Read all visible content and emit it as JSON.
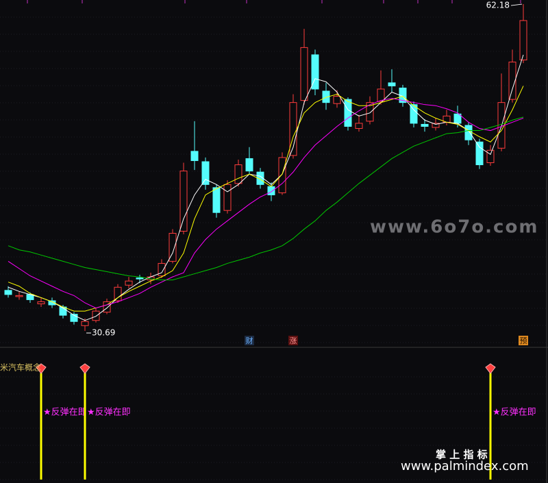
{
  "chart_data": {
    "type": "candlestick",
    "ylim": [
      29.24,
      62.58
    ],
    "up_color": "#ff3c3c",
    "down_color": "#54fcfc",
    "open": [
      34.6,
      34.0,
      34.2,
      33.3,
      33.6,
      33.0,
      32.3,
      31.2,
      31.7,
      32.5,
      33.6,
      35.1,
      35.8,
      35.6,
      36.0,
      37.4,
      40.3,
      48.0,
      47.0,
      44.5,
      42.3,
      44.9,
      47.3,
      46.0,
      44.6,
      44.0,
      47.6,
      52.9,
      57.3,
      53.8,
      52.6,
      53.0,
      50.2,
      50.9,
      52.8,
      54.6,
      54.1,
      52.5,
      50.6,
      50.3,
      50.8,
      51.6,
      50.5,
      48.9,
      46.9,
      48.3,
      53.0,
      56.8
    ],
    "close": [
      34.2,
      34.1,
      33.7,
      33.5,
      33.2,
      32.2,
      31.6,
      31.6,
      32.6,
      33.5,
      34.9,
      35.5,
      35.7,
      35.9,
      37.2,
      40.1,
      46.1,
      47.1,
      44.8,
      42.1,
      44.8,
      46.7,
      46.1,
      44.8,
      43.8,
      47.4,
      52.7,
      58.0,
      54.0,
      52.7,
      53.3,
      50.4,
      50.7,
      52.7,
      54.0,
      54.3,
      52.7,
      50.7,
      50.4,
      50.7,
      51.4,
      50.7,
      49.1,
      46.7,
      48.1,
      52.7,
      56.6,
      60.6
    ],
    "high": [
      35.0,
      34.5,
      34.4,
      33.9,
      33.9,
      33.2,
      32.5,
      31.9,
      32.9,
      33.8,
      35.2,
      35.9,
      36.1,
      36.3,
      37.6,
      40.5,
      46.9,
      50.9,
      47.4,
      44.8,
      45.2,
      47.2,
      48.4,
      46.4,
      45.0,
      47.9,
      53.5,
      59.8,
      57.8,
      54.6,
      53.9,
      53.2,
      51.5,
      53.3,
      55.8,
      55.9,
      54.4,
      52.8,
      51.1,
      51.2,
      52.0,
      52.4,
      50.8,
      49.2,
      48.6,
      55.5,
      57.8,
      62.18
    ],
    "low": [
      33.9,
      33.7,
      33.4,
      33.0,
      32.9,
      31.9,
      31.3,
      30.69,
      31.5,
      32.3,
      33.4,
      34.8,
      35.3,
      35.2,
      35.8,
      37.2,
      40.0,
      46.2,
      44.3,
      41.6,
      42.0,
      44.6,
      45.8,
      44.4,
      43.2,
      43.8,
      47.3,
      52.5,
      53.4,
      52.0,
      52.2,
      50.0,
      49.9,
      50.6,
      52.5,
      53.7,
      52.3,
      50.3,
      49.9,
      50.0,
      50.5,
      50.3,
      48.6,
      46.3,
      46.6,
      48.0,
      52.7,
      56.5
    ],
    "series": [
      {
        "color": "#ffffff",
        "values": [
          34.9,
          34.5,
          34.2,
          33.9,
          33.5,
          32.9,
          32.2,
          31.7,
          32.1,
          32.9,
          33.9,
          34.7,
          35.4,
          35.9,
          36.3,
          38.2,
          41.5,
          43.8,
          45.3,
          44.8,
          44.1,
          44.8,
          45.8,
          45.6,
          44.8,
          45.8,
          48.4,
          52.7,
          55.0,
          54.7,
          53.7,
          52.0,
          51.4,
          51.7,
          52.7,
          53.7,
          53.3,
          52.0,
          51.0,
          50.6,
          50.8,
          50.7,
          50.0,
          48.4,
          47.7,
          50.4,
          54.0,
          57.3
        ]
      },
      {
        "color": "#ffff00",
        "values": [
          35.4,
          35.0,
          34.3,
          33.9,
          33.5,
          33.0,
          32.6,
          32.6,
          32.9,
          33.2,
          33.9,
          34.5,
          35.0,
          35.5,
          35.9,
          36.5,
          38.2,
          41.5,
          43.8,
          44.4,
          44.9,
          45.4,
          45.8,
          45.3,
          44.6,
          45.8,
          49.4,
          51.7,
          52.7,
          53.2,
          53.5,
          52.8,
          52.4,
          52.4,
          52.7,
          53.0,
          53.3,
          52.4,
          51.7,
          51.2,
          50.8,
          50.6,
          50.0,
          49.4,
          48.9,
          50.0,
          52.0,
          54.3
        ]
      },
      {
        "color": "#ff00ff",
        "values": [
          37.4,
          36.7,
          36.0,
          35.5,
          35.0,
          34.5,
          34.1,
          33.4,
          32.9,
          33.2,
          33.5,
          33.9,
          34.3,
          34.9,
          35.4,
          35.9,
          36.3,
          38.2,
          39.5,
          40.5,
          41.3,
          42.1,
          42.9,
          43.6,
          44.1,
          44.9,
          46.0,
          47.4,
          48.6,
          49.5,
          50.4,
          51.2,
          51.9,
          52.5,
          52.9,
          53.1,
          52.9,
          52.7,
          52.5,
          52.4,
          52.1,
          51.7,
          50.8,
          50.2,
          50.0,
          50.4,
          50.8,
          51.2
        ]
      },
      {
        "color": "#00c800",
        "values": [
          38.9,
          38.5,
          38.3,
          38.0,
          37.7,
          37.4,
          37.1,
          36.8,
          36.6,
          36.4,
          36.2,
          36.0,
          35.9,
          35.7,
          35.6,
          35.6,
          35.9,
          36.2,
          36.5,
          36.8,
          37.2,
          37.5,
          37.8,
          38.2,
          38.5,
          38.9,
          39.6,
          40.5,
          41.3,
          42.3,
          43.1,
          44.0,
          44.9,
          45.7,
          46.5,
          47.3,
          47.9,
          48.5,
          48.9,
          49.3,
          49.7,
          49.8,
          50.0,
          50.0,
          50.3,
          50.6,
          51.0,
          51.3
        ]
      }
    ],
    "events": [
      null,
      null,
      null,
      null,
      null,
      null,
      null,
      null,
      null,
      null,
      null,
      null,
      null,
      null,
      null,
      null,
      null,
      null,
      null,
      null,
      null,
      null,
      "财",
      null,
      null,
      null,
      "涨",
      null,
      null,
      null,
      null,
      null,
      null,
      null,
      null,
      null,
      null,
      null,
      null,
      null,
      null,
      null,
      null,
      null,
      null,
      null,
      null,
      "预"
    ],
    "indicator": {
      "title": "米汽车概念",
      "color": "#ffff00",
      "signals": [
        null,
        null,
        null,
        "★反弹在即",
        null,
        null,
        null,
        "★反弹在即",
        null,
        null,
        null,
        null,
        null,
        null,
        null,
        null,
        null,
        null,
        null,
        null,
        null,
        null,
        null,
        null,
        null,
        null,
        null,
        null,
        null,
        null,
        null,
        null,
        null,
        null,
        null,
        null,
        null,
        null,
        null,
        null,
        null,
        null,
        null,
        null,
        "★反弹在即",
        null,
        null,
        null
      ]
    }
  },
  "watermark": {
    "site": "www.6o7o.com",
    "brand": "掌 上 指 标",
    "url": "www.palmindex.com"
  }
}
